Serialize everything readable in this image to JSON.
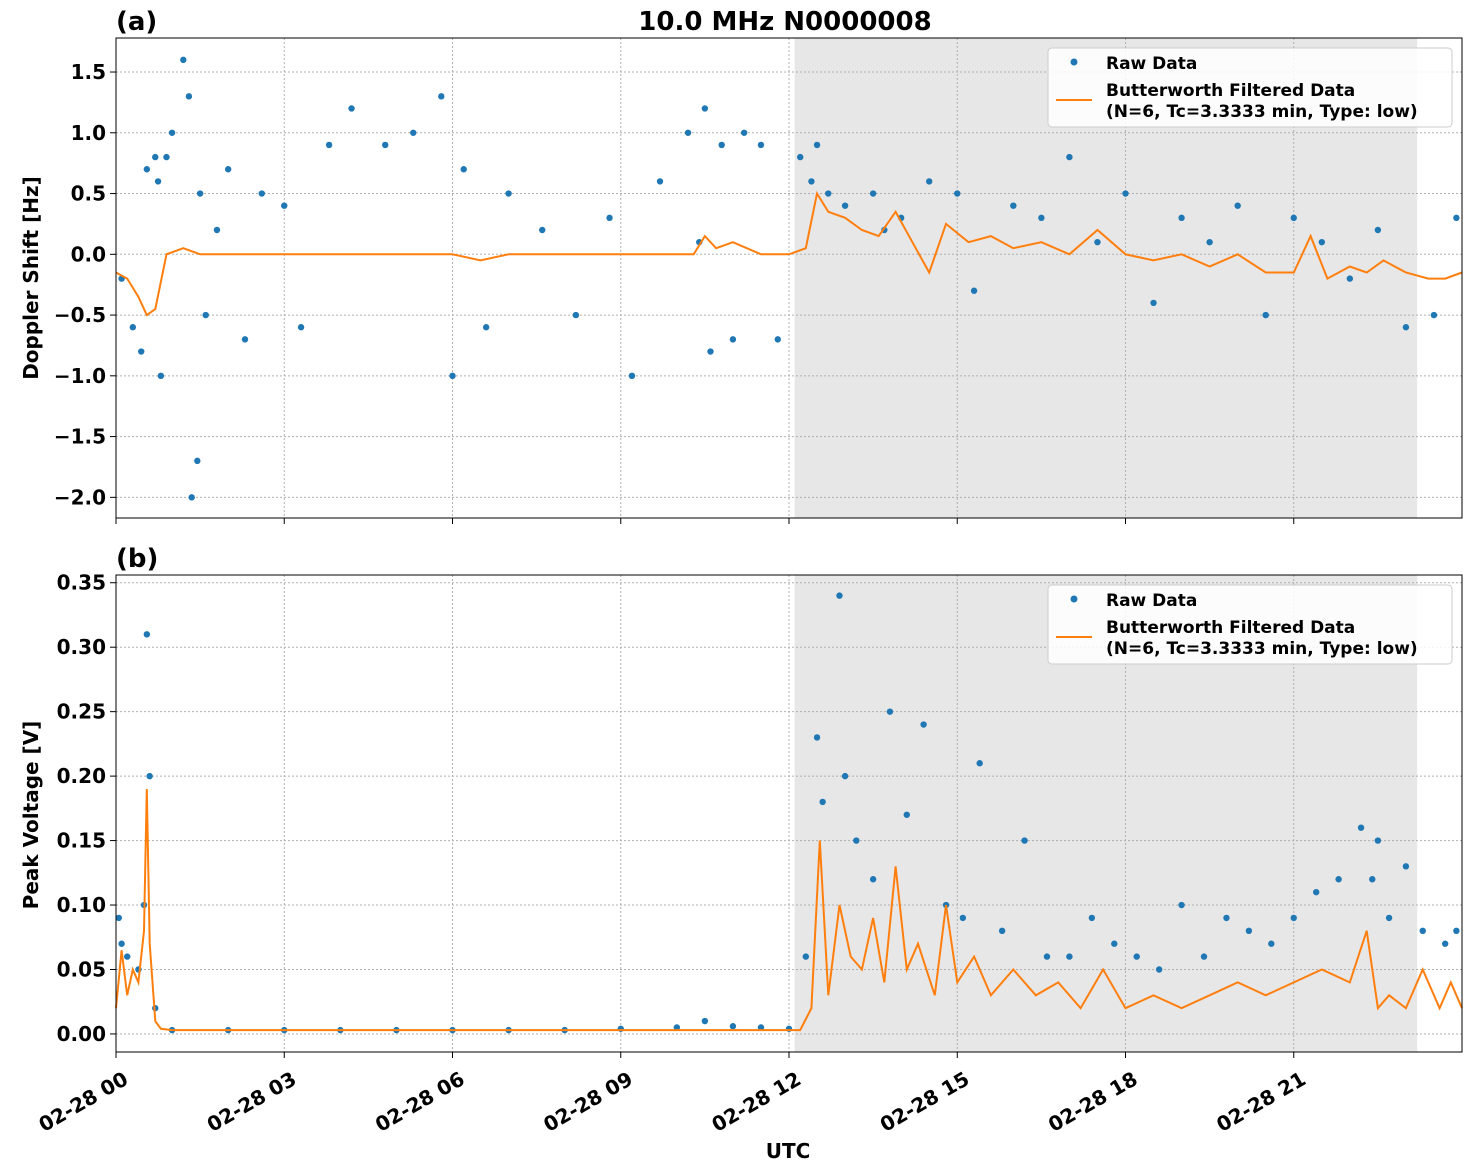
{
  "figure": {
    "title": "10.0 MHz N0000008",
    "xlabel": "UTC",
    "raw_color": "#1f77b4",
    "filtered_color": "#ff7f0e",
    "shade_color": "#e7e7e7",
    "legend": {
      "raw": "Raw Data",
      "filtered_line1": "Butterworth Filtered Data",
      "filtered_line2": "(N=6, Tc=3.3333 min, Type: low)"
    }
  },
  "chart_data": [
    {
      "type": "scatter",
      "panel_label": "(a)",
      "ylabel": "Doppler Shift [Hz]",
      "xlim_hours": [
        0,
        24
      ],
      "ylim": [
        -2.17,
        1.78
      ],
      "yticks": [
        -2.0,
        -1.5,
        -1.0,
        -0.5,
        0.0,
        0.5,
        1.0,
        1.5
      ],
      "ytick_labels": [
        "−2.0",
        "−1.5",
        "−1.0",
        "−0.5",
        "0.0",
        "0.5",
        "1.0",
        "1.5"
      ],
      "shaded_hours": [
        12.1,
        23.2
      ],
      "grid": true,
      "legend_position": "top-right",
      "series": [
        {
          "name": "Raw Data",
          "kind": "points",
          "x": [
            0.1,
            0.3,
            0.45,
            0.55,
            0.7,
            0.75,
            0.8,
            0.9,
            1.0,
            1.2,
            1.3,
            1.35,
            1.45,
            1.5,
            1.6,
            1.8,
            2.0,
            2.3,
            2.6,
            3.0,
            3.3,
            3.8,
            4.2,
            4.8,
            5.3,
            5.8,
            6.0,
            6.2,
            6.6,
            7.0,
            7.6,
            8.2,
            8.8,
            9.2,
            9.7,
            10.2,
            10.4,
            10.5,
            10.6,
            10.8,
            11.0,
            11.2,
            11.5,
            11.8,
            12.2,
            12.4,
            12.5,
            12.7,
            13.0,
            13.5,
            13.7,
            14.0,
            14.5,
            15.0,
            15.3,
            16.0,
            16.5,
            17.0,
            17.5,
            18.0,
            18.5,
            19.0,
            19.5,
            20.0,
            20.5,
            21.0,
            21.5,
            22.0,
            22.5,
            23.0,
            23.5,
            23.9
          ],
          "y": [
            -0.2,
            -0.6,
            -0.8,
            0.7,
            0.8,
            0.6,
            -1.0,
            0.8,
            1.0,
            1.6,
            1.3,
            -2.0,
            -1.7,
            0.5,
            -0.5,
            0.2,
            0.7,
            -0.7,
            0.5,
            0.4,
            -0.6,
            0.9,
            1.2,
            0.9,
            1.0,
            1.3,
            -1.0,
            0.7,
            -0.6,
            0.5,
            0.2,
            -0.5,
            0.3,
            -1.0,
            0.6,
            1.0,
            0.1,
            1.2,
            -0.8,
            0.9,
            -0.7,
            1.0,
            0.9,
            -0.7,
            0.8,
            0.6,
            0.9,
            0.5,
            0.4,
            0.5,
            0.2,
            0.3,
            0.6,
            0.5,
            -0.3,
            0.4,
            0.3,
            0.8,
            0.1,
            0.5,
            -0.4,
            0.3,
            0.1,
            0.4,
            -0.5,
            0.3,
            0.1,
            -0.2,
            0.2,
            -0.6,
            -0.5,
            0.3
          ]
        },
        {
          "name": "Butterworth Filtered Data",
          "kind": "line",
          "x": [
            0,
            0.2,
            0.4,
            0.55,
            0.7,
            0.9,
            1.2,
            1.5,
            2,
            3,
            4,
            5,
            6,
            6.5,
            7,
            8,
            9,
            10,
            10.3,
            10.5,
            10.7,
            11,
            11.5,
            12,
            12.3,
            12.5,
            12.7,
            13,
            13.3,
            13.6,
            13.9,
            14.2,
            14.5,
            14.8,
            15.2,
            15.6,
            16,
            16.5,
            17,
            17.5,
            18,
            18.5,
            19,
            19.5,
            20,
            20.5,
            21,
            21.3,
            21.6,
            22,
            22.3,
            22.6,
            23,
            23.4,
            23.7,
            24
          ],
          "y": [
            -0.15,
            -0.2,
            -0.35,
            -0.5,
            -0.45,
            0.0,
            0.05,
            0.0,
            0.0,
            0.0,
            0.0,
            0.0,
            0.0,
            -0.05,
            0.0,
            0.0,
            0.0,
            0.0,
            0.0,
            0.15,
            0.05,
            0.1,
            0.0,
            0.0,
            0.05,
            0.5,
            0.35,
            0.3,
            0.2,
            0.15,
            0.35,
            0.1,
            -0.15,
            0.25,
            0.1,
            0.15,
            0.05,
            0.1,
            0.0,
            0.2,
            0.0,
            -0.05,
            0.0,
            -0.1,
            0.0,
            -0.15,
            -0.15,
            0.15,
            -0.2,
            -0.1,
            -0.15,
            -0.05,
            -0.15,
            -0.2,
            -0.2,
            -0.15
          ]
        }
      ]
    },
    {
      "type": "scatter",
      "panel_label": "(b)",
      "ylabel": "Peak Voltage [V]",
      "xlim_hours": [
        0,
        24
      ],
      "ylim": [
        -0.014,
        0.356
      ],
      "yticks": [
        0.0,
        0.05,
        0.1,
        0.15,
        0.2,
        0.25,
        0.3,
        0.35
      ],
      "ytick_labels": [
        "0.00",
        "0.05",
        "0.10",
        "0.15",
        "0.20",
        "0.25",
        "0.30",
        "0.35"
      ],
      "shaded_hours": [
        12.1,
        23.2
      ],
      "grid": true,
      "legend_position": "top-right",
      "xticks_hours": [
        0,
        3,
        6,
        9,
        12,
        15,
        18,
        21
      ],
      "xtick_labels": [
        "02-28 00",
        "02-28 03",
        "02-28 06",
        "02-28 09",
        "02-28 12",
        "02-28 15",
        "02-28 18",
        "02-28 21"
      ],
      "series": [
        {
          "name": "Raw Data",
          "kind": "points",
          "x": [
            0.05,
            0.1,
            0.2,
            0.4,
            0.5,
            0.55,
            0.6,
            0.7,
            1,
            2,
            3,
            4,
            5,
            6,
            7,
            8,
            9,
            10,
            10.5,
            11,
            11.5,
            12,
            12.3,
            12.5,
            12.6,
            12.9,
            13.0,
            13.2,
            13.5,
            13.8,
            14.1,
            14.4,
            14.8,
            15.1,
            15.4,
            15.8,
            16.2,
            16.6,
            17.0,
            17.4,
            17.8,
            18.2,
            18.6,
            19.0,
            19.4,
            19.8,
            20.2,
            20.6,
            21.0,
            21.4,
            21.8,
            22.2,
            22.4,
            22.5,
            22.7,
            23.0,
            23.3,
            23.7,
            23.9
          ],
          "y": [
            0.09,
            0.07,
            0.06,
            0.05,
            0.1,
            0.31,
            0.2,
            0.02,
            0.003,
            0.003,
            0.003,
            0.003,
            0.003,
            0.003,
            0.003,
            0.003,
            0.004,
            0.005,
            0.01,
            0.006,
            0.005,
            0.004,
            0.06,
            0.23,
            0.18,
            0.34,
            0.2,
            0.15,
            0.12,
            0.25,
            0.17,
            0.24,
            0.1,
            0.09,
            0.21,
            0.08,
            0.15,
            0.06,
            0.06,
            0.09,
            0.07,
            0.06,
            0.05,
            0.1,
            0.06,
            0.09,
            0.08,
            0.07,
            0.09,
            0.11,
            0.12,
            0.16,
            0.12,
            0.15,
            0.09,
            0.13,
            0.08,
            0.07,
            0.08
          ]
        },
        {
          "name": "Butterworth Filtered Data",
          "kind": "line",
          "x": [
            0,
            0.1,
            0.2,
            0.3,
            0.4,
            0.5,
            0.55,
            0.6,
            0.7,
            0.8,
            1,
            3,
            6,
            9,
            11,
            12,
            12.2,
            12.4,
            12.55,
            12.7,
            12.9,
            13.1,
            13.3,
            13.5,
            13.7,
            13.9,
            14.1,
            14.3,
            14.6,
            14.8,
            15,
            15.3,
            15.6,
            16,
            16.4,
            16.8,
            17.2,
            17.6,
            18,
            18.5,
            19,
            19.5,
            20,
            20.5,
            21,
            21.5,
            22,
            22.3,
            22.5,
            22.7,
            23,
            23.3,
            23.6,
            23.8,
            24
          ],
          "y": [
            0.02,
            0.065,
            0.03,
            0.05,
            0.04,
            0.08,
            0.19,
            0.07,
            0.01,
            0.004,
            0.003,
            0.003,
            0.003,
            0.003,
            0.003,
            0.003,
            0.003,
            0.02,
            0.15,
            0.03,
            0.1,
            0.06,
            0.05,
            0.09,
            0.04,
            0.13,
            0.05,
            0.07,
            0.03,
            0.1,
            0.04,
            0.06,
            0.03,
            0.05,
            0.03,
            0.04,
            0.02,
            0.05,
            0.02,
            0.03,
            0.02,
            0.03,
            0.04,
            0.03,
            0.04,
            0.05,
            0.04,
            0.08,
            0.02,
            0.03,
            0.02,
            0.05,
            0.02,
            0.04,
            0.02
          ]
        }
      ]
    }
  ]
}
